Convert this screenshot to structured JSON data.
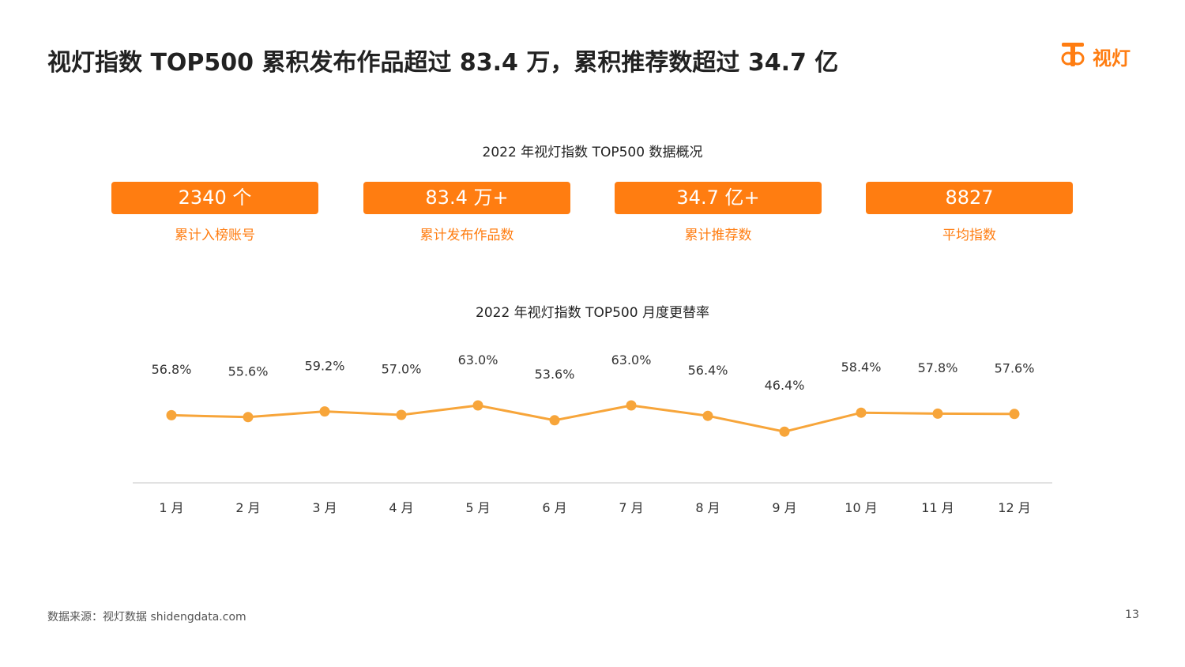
{
  "header": {
    "title": "视灯指数 TOP500 累积发布作品超过 83.4 万，累积推荐数超过 34.7 亿",
    "logo_text": "视灯"
  },
  "overview": {
    "title": "2022 年视灯指数 TOP500 数据概况",
    "stats": [
      {
        "value": "2340 个",
        "label": "累计入榜账号"
      },
      {
        "value": "83.4 万+",
        "label": "累计发布作品数"
      },
      {
        "value": "34.7 亿+",
        "label": "累计推荐数"
      },
      {
        "value": "8827",
        "label": "平均指数"
      }
    ]
  },
  "chart_data": {
    "type": "line",
    "title": "2022 年视灯指数 TOP500 月度更替率",
    "categories": [
      "1 月",
      "2 月",
      "3 月",
      "4 月",
      "5 月",
      "6 月",
      "7 月",
      "8 月",
      "9 月",
      "10  月",
      "11  月",
      "12  月"
    ],
    "series": [
      {
        "values": [
          56.8,
          55.6,
          59.2,
          57.0,
          63.0,
          53.6,
          63.0,
          56.4,
          46.4,
          58.4,
          57.8,
          57.6
        ],
        "labels": [
          "56.8%",
          "55.6%",
          "59.2%",
          "57.0%",
          "63.0%",
          "53.6%",
          "63.0%",
          "56.4%",
          "46.4%",
          "58.4%",
          "57.8%",
          "57.6%"
        ]
      }
    ],
    "xlabel": "",
    "ylabel": "",
    "ylim": [
      40,
      70
    ],
    "grid": false,
    "legend": "none",
    "line_color": "#f7a53a",
    "axis_color": "#d9d9d9"
  },
  "colors": {
    "accent": "#ff7d11",
    "text": "#222222"
  },
  "footer": {
    "source": "数据来源：视灯数据 shidengdata.com",
    "page_number": "13"
  }
}
